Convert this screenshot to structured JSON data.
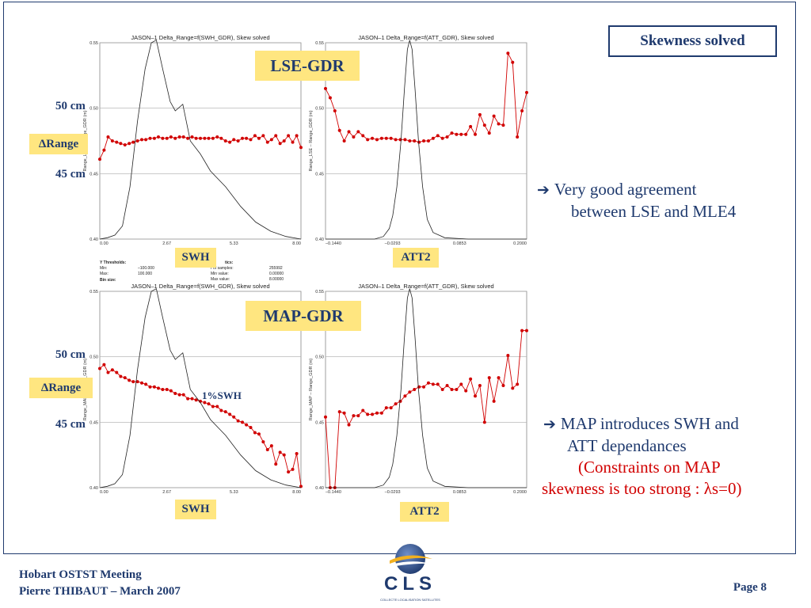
{
  "slide": {
    "title": "Skewness solved",
    "page": "Page 8",
    "footer_line1": "Hobart OSTST Meeting",
    "footer_line2": "Pierre THIBAUT – March 2007",
    "logo_text": "CLS",
    "logo_subtext": "COLLECTE LOCALISATION SATELLITES",
    "colors": {
      "navy": "#1f3a6e",
      "gold": "#ffe680",
      "red": "#d10000"
    }
  },
  "labels": {
    "lse_gdr": "LSE-GDR",
    "map_gdr": "MAP-GDR",
    "cm50": "50 cm",
    "cm45": "45 cm",
    "delta_range": "ΔRange",
    "swh": "SWH",
    "att2": "ATT2",
    "one_pct_swh": "1%SWH"
  },
  "bullets": {
    "b1_arrow": "➔",
    "b1_line1": "Very good agreement",
    "b1_line2": "between LSE and MLE4",
    "b2_arrow": "➔",
    "b2_line1": "MAP introduces SWH and",
    "b2_line2": "ATT dependances",
    "b2_line3": "(Constraints on MAP",
    "b2_line4": "skewness is too strong : λs=0)"
  },
  "stats_panel": {
    "h1": "Y Thresholds:",
    "min_label": "Min:",
    "min_val": "–100.000",
    "max_label": "Max:",
    "max_val": "100.000",
    "bin_label": "Bin size:",
    "h2": "tics:",
    "n_label": "r of samples:",
    "n_val": "255992",
    "minv_label": "Min value:",
    "minv_val": "0.00000",
    "maxv_label": "Max value:",
    "maxv_val": "8.00000"
  },
  "chart_data": [
    {
      "type": "line",
      "title": "JASON–1 Delta_Range=f(SWH_GDR), Skew solved",
      "ylabel": "Range_LSE – Range_GDR (m)",
      "ylim": [
        0.4,
        0.55
      ],
      "xlim": [
        0.0,
        8.0
      ],
      "xticks": [
        "0.00",
        "2.67",
        "5.33",
        "8.00"
      ],
      "yticks": [
        "0.40",
        "0.45",
        "0.50",
        "0.55"
      ],
      "grid": true,
      "series": [
        {
          "role": "points",
          "color": "#d10000",
          "x": [
            0.0,
            0.17,
            0.33,
            0.5,
            0.67,
            0.83,
            1.0,
            1.17,
            1.33,
            1.5,
            1.67,
            1.83,
            2.0,
            2.17,
            2.33,
            2.5,
            2.67,
            2.83,
            3.0,
            3.17,
            3.33,
            3.5,
            3.67,
            3.83,
            4.0,
            4.17,
            4.33,
            4.5,
            4.67,
            4.83,
            5.0,
            5.17,
            5.33,
            5.5,
            5.67,
            5.83,
            6.0,
            6.17,
            6.33,
            6.5,
            6.67,
            6.83,
            7.0,
            7.17,
            7.33,
            7.5,
            7.67,
            7.83,
            8.0
          ],
          "y": [
            0.461,
            0.468,
            0.478,
            0.475,
            0.474,
            0.473,
            0.472,
            0.473,
            0.474,
            0.475,
            0.476,
            0.476,
            0.477,
            0.477,
            0.478,
            0.477,
            0.477,
            0.478,
            0.477,
            0.478,
            0.478,
            0.477,
            0.478,
            0.477,
            0.477,
            0.477,
            0.477,
            0.477,
            0.478,
            0.477,
            0.475,
            0.474,
            0.476,
            0.475,
            0.477,
            0.477,
            0.476,
            0.479,
            0.477,
            0.479,
            0.474,
            0.476,
            0.479,
            0.473,
            0.475,
            0.479,
            0.474,
            0.479,
            0.47
          ]
        },
        {
          "role": "histogram",
          "color": "#222222",
          "x": [
            0.0,
            0.3,
            0.6,
            0.9,
            1.2,
            1.5,
            1.8,
            2.05,
            2.25,
            2.5,
            2.8,
            3.0,
            3.3,
            3.6,
            4.0,
            4.4,
            5.0,
            5.6,
            6.2,
            6.8,
            7.4,
            8.0
          ],
          "y": [
            0.4,
            0.401,
            0.403,
            0.41,
            0.44,
            0.49,
            0.53,
            0.55,
            0.552,
            0.53,
            0.505,
            0.498,
            0.503,
            0.475,
            0.465,
            0.452,
            0.44,
            0.425,
            0.413,
            0.406,
            0.402,
            0.4
          ]
        }
      ]
    },
    {
      "type": "line",
      "title": "JASON–1 Delta_Range=f(ATT_GDR), Skew solved",
      "ylabel": "Range_LSE – Range_GDR (m)",
      "ylim": [
        0.4,
        0.55
      ],
      "xlim": [
        -0.144,
        0.2
      ],
      "xticks": [
        "–0.1440",
        "–0.0293",
        "0.0853",
        "0.2000"
      ],
      "yticks": [
        "0.40",
        "0.45",
        "0.50",
        "0.55"
      ],
      "grid": true,
      "series": [
        {
          "role": "points",
          "color": "#d10000",
          "x": [
            -0.144,
            -0.136,
            -0.128,
            -0.12,
            -0.112,
            -0.104,
            -0.096,
            -0.088,
            -0.08,
            -0.072,
            -0.064,
            -0.056,
            -0.048,
            -0.04,
            -0.032,
            -0.024,
            -0.016,
            -0.008,
            0.0,
            0.008,
            0.016,
            0.024,
            0.032,
            0.04,
            0.048,
            0.056,
            0.064,
            0.072,
            0.08,
            0.088,
            0.096,
            0.104,
            0.112,
            0.12,
            0.128,
            0.136,
            0.144,
            0.152,
            0.16,
            0.168,
            0.176,
            0.184,
            0.192,
            0.2
          ],
          "y": [
            0.515,
            0.508,
            0.498,
            0.483,
            0.475,
            0.482,
            0.478,
            0.482,
            0.479,
            0.476,
            0.477,
            0.476,
            0.477,
            0.477,
            0.477,
            0.476,
            0.476,
            0.476,
            0.475,
            0.475,
            0.474,
            0.475,
            0.475,
            0.477,
            0.479,
            0.477,
            0.478,
            0.481,
            0.48,
            0.48,
            0.48,
            0.486,
            0.48,
            0.495,
            0.487,
            0.481,
            0.494,
            0.488,
            0.487,
            0.542,
            0.535,
            0.478,
            0.498,
            0.512
          ]
        },
        {
          "role": "histogram",
          "color": "#222222",
          "x": [
            -0.144,
            -0.09,
            -0.06,
            -0.045,
            -0.035,
            -0.029,
            -0.022,
            -0.015,
            -0.009,
            -0.004,
            0.0,
            0.004,
            0.009,
            0.015,
            0.022,
            0.03,
            0.04,
            0.06,
            0.1,
            0.15,
            0.2
          ],
          "y": [
            0.4,
            0.4,
            0.4,
            0.402,
            0.408,
            0.418,
            0.44,
            0.475,
            0.515,
            0.545,
            0.552,
            0.545,
            0.515,
            0.475,
            0.44,
            0.415,
            0.405,
            0.401,
            0.4,
            0.4,
            0.4
          ]
        }
      ]
    },
    {
      "type": "line",
      "title": "JASON–1 Delta_Range=f(SWH_GDR), Skew solved",
      "ylabel": "Range_MAP – Range_GDR (m)",
      "ylim": [
        0.4,
        0.55
      ],
      "xlim": [
        0.0,
        8.0
      ],
      "xticks": [
        "0.00",
        "2.67",
        "5.33",
        "8.00"
      ],
      "yticks": [
        "0.40",
        "0.45",
        "0.50",
        "0.55"
      ],
      "grid": true,
      "series": [
        {
          "role": "points",
          "color": "#d10000",
          "x": [
            0.0,
            0.17,
            0.33,
            0.5,
            0.67,
            0.83,
            1.0,
            1.17,
            1.33,
            1.5,
            1.67,
            1.83,
            2.0,
            2.17,
            2.33,
            2.5,
            2.67,
            2.83,
            3.0,
            3.17,
            3.33,
            3.5,
            3.67,
            3.83,
            4.0,
            4.17,
            4.33,
            4.5,
            4.67,
            4.83,
            5.0,
            5.17,
            5.33,
            5.5,
            5.67,
            5.83,
            6.0,
            6.17,
            6.33,
            6.5,
            6.67,
            6.83,
            7.0,
            7.17,
            7.33,
            7.5,
            7.67,
            7.83,
            8.0
          ],
          "y": [
            0.491,
            0.494,
            0.488,
            0.49,
            0.488,
            0.485,
            0.484,
            0.482,
            0.481,
            0.481,
            0.48,
            0.479,
            0.477,
            0.477,
            0.476,
            0.475,
            0.475,
            0.474,
            0.472,
            0.471,
            0.471,
            0.468,
            0.468,
            0.467,
            0.466,
            0.465,
            0.464,
            0.462,
            0.462,
            0.459,
            0.458,
            0.456,
            0.454,
            0.451,
            0.45,
            0.448,
            0.446,
            0.442,
            0.441,
            0.435,
            0.429,
            0.432,
            0.418,
            0.427,
            0.425,
            0.412,
            0.414,
            0.426,
            0.401
          ]
        },
        {
          "role": "histogram",
          "color": "#222222",
          "x": [
            0.0,
            0.3,
            0.6,
            0.9,
            1.2,
            1.5,
            1.8,
            2.05,
            2.25,
            2.5,
            2.8,
            3.0,
            3.3,
            3.6,
            4.0,
            4.4,
            5.0,
            5.6,
            6.2,
            6.8,
            7.4,
            8.0
          ],
          "y": [
            0.4,
            0.401,
            0.403,
            0.41,
            0.44,
            0.49,
            0.53,
            0.55,
            0.552,
            0.53,
            0.505,
            0.498,
            0.503,
            0.475,
            0.465,
            0.452,
            0.44,
            0.425,
            0.413,
            0.406,
            0.402,
            0.4
          ]
        }
      ]
    },
    {
      "type": "line",
      "title": "JASON–1 Delta_Range=f(ATT_GDR), Skew solved",
      "ylabel": "Range_MAP – Range_GDR (m)",
      "ylim": [
        0.4,
        0.55
      ],
      "xlim": [
        -0.144,
        0.2
      ],
      "xticks": [
        "–0.1440",
        "–0.0293",
        "0.0853",
        "0.2000"
      ],
      "yticks": [
        "0.40",
        "0.45",
        "0.50",
        "0.55"
      ],
      "grid": true,
      "series": [
        {
          "role": "points",
          "color": "#d10000",
          "x": [
            -0.144,
            -0.136,
            -0.128,
            -0.12,
            -0.112,
            -0.104,
            -0.096,
            -0.088,
            -0.08,
            -0.072,
            -0.064,
            -0.056,
            -0.048,
            -0.04,
            -0.032,
            -0.024,
            -0.016,
            -0.008,
            0.0,
            0.008,
            0.016,
            0.024,
            0.032,
            0.04,
            0.048,
            0.056,
            0.064,
            0.072,
            0.08,
            0.088,
            0.096,
            0.104,
            0.112,
            0.12,
            0.128,
            0.136,
            0.144,
            0.152,
            0.16,
            0.168,
            0.176,
            0.184,
            0.192,
            0.2
          ],
          "y": [
            0.454,
            0.4,
            0.4,
            0.458,
            0.457,
            0.448,
            0.455,
            0.455,
            0.459,
            0.456,
            0.456,
            0.457,
            0.457,
            0.461,
            0.461,
            0.464,
            0.466,
            0.47,
            0.473,
            0.475,
            0.477,
            0.477,
            0.48,
            0.479,
            0.479,
            0.475,
            0.478,
            0.475,
            0.475,
            0.479,
            0.474,
            0.483,
            0.47,
            0.478,
            0.45,
            0.484,
            0.466,
            0.484,
            0.478,
            0.501,
            0.476,
            0.479,
            0.52,
            0.52
          ]
        },
        {
          "role": "histogram",
          "color": "#222222",
          "x": [
            -0.144,
            -0.09,
            -0.06,
            -0.045,
            -0.035,
            -0.029,
            -0.022,
            -0.015,
            -0.009,
            -0.004,
            0.0,
            0.004,
            0.009,
            0.015,
            0.022,
            0.03,
            0.04,
            0.06,
            0.1,
            0.15,
            0.2
          ],
          "y": [
            0.4,
            0.4,
            0.4,
            0.402,
            0.408,
            0.418,
            0.44,
            0.475,
            0.515,
            0.545,
            0.552,
            0.545,
            0.515,
            0.475,
            0.44,
            0.415,
            0.405,
            0.401,
            0.4,
            0.4,
            0.4
          ]
        }
      ]
    }
  ]
}
